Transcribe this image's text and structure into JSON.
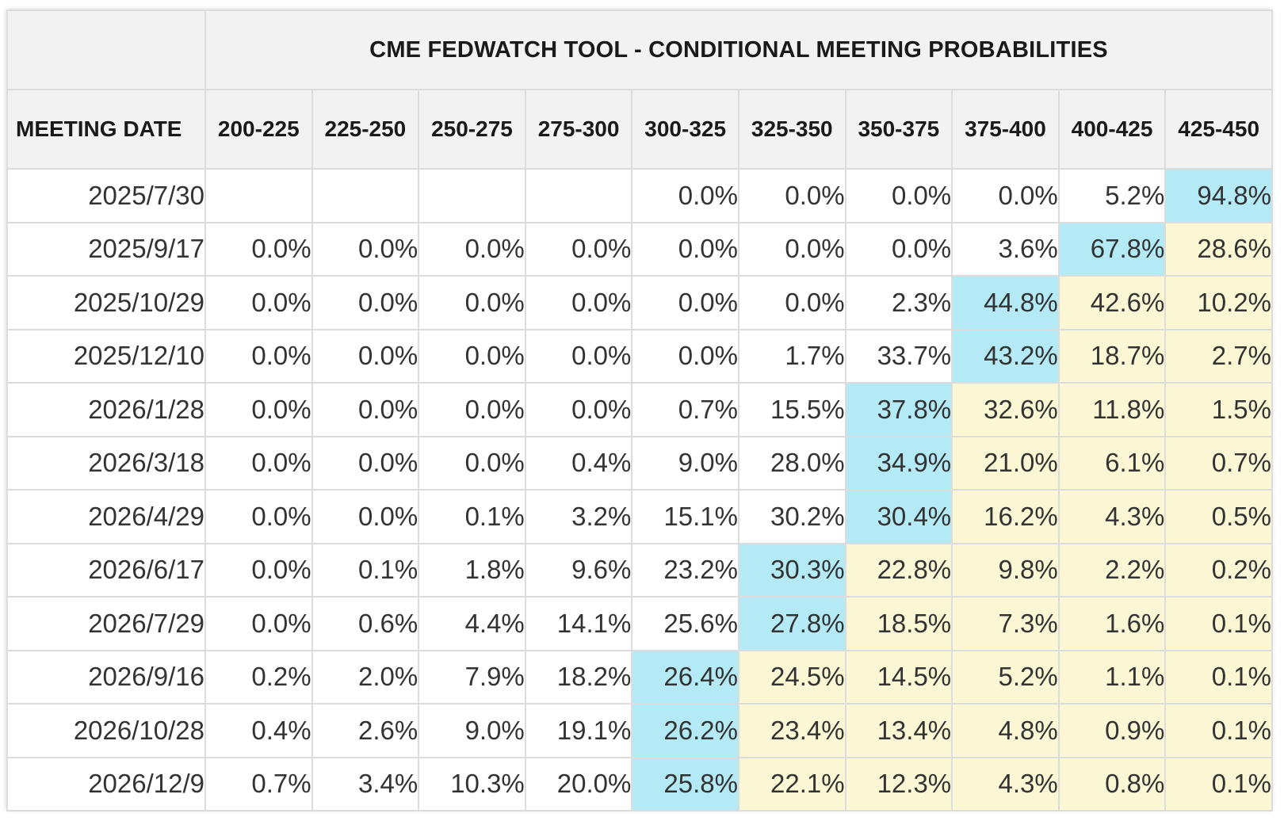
{
  "chart_data": {
    "type": "table",
    "title": "CME FEDWATCH TOOL - CONDITIONAL MEETING PROBABILITIES",
    "row_header_label": "MEETING DATE",
    "columns": [
      "200-225",
      "225-250",
      "250-275",
      "275-300",
      "300-325",
      "325-350",
      "350-375",
      "375-400",
      "400-425",
      "425-450"
    ],
    "rows": [
      {
        "date": "2025/7/30",
        "values": [
          "",
          "",
          "",
          "",
          "0.0%",
          "0.0%",
          "0.0%",
          "0.0%",
          "5.2%",
          "94.8%"
        ],
        "peak": 9
      },
      {
        "date": "2025/9/17",
        "values": [
          "0.0%",
          "0.0%",
          "0.0%",
          "0.0%",
          "0.0%",
          "0.0%",
          "0.0%",
          "3.6%",
          "67.8%",
          "28.6%"
        ],
        "peak": 8
      },
      {
        "date": "2025/10/29",
        "values": [
          "0.0%",
          "0.0%",
          "0.0%",
          "0.0%",
          "0.0%",
          "0.0%",
          "2.3%",
          "44.8%",
          "42.6%",
          "10.2%"
        ],
        "peak": 7
      },
      {
        "date": "2025/12/10",
        "values": [
          "0.0%",
          "0.0%",
          "0.0%",
          "0.0%",
          "0.0%",
          "1.7%",
          "33.7%",
          "43.2%",
          "18.7%",
          "2.7%"
        ],
        "peak": 7
      },
      {
        "date": "2026/1/28",
        "values": [
          "0.0%",
          "0.0%",
          "0.0%",
          "0.0%",
          "0.7%",
          "15.5%",
          "37.8%",
          "32.6%",
          "11.8%",
          "1.5%"
        ],
        "peak": 6
      },
      {
        "date": "2026/3/18",
        "values": [
          "0.0%",
          "0.0%",
          "0.0%",
          "0.4%",
          "9.0%",
          "28.0%",
          "34.9%",
          "21.0%",
          "6.1%",
          "0.7%"
        ],
        "peak": 6
      },
      {
        "date": "2026/4/29",
        "values": [
          "0.0%",
          "0.0%",
          "0.1%",
          "3.2%",
          "15.1%",
          "30.2%",
          "30.4%",
          "16.2%",
          "4.3%",
          "0.5%"
        ],
        "peak": 6
      },
      {
        "date": "2026/6/17",
        "values": [
          "0.0%",
          "0.1%",
          "1.8%",
          "9.6%",
          "23.2%",
          "30.3%",
          "22.8%",
          "9.8%",
          "2.2%",
          "0.2%"
        ],
        "peak": 5
      },
      {
        "date": "2026/7/29",
        "values": [
          "0.0%",
          "0.6%",
          "4.4%",
          "14.1%",
          "25.6%",
          "27.8%",
          "18.5%",
          "7.3%",
          "1.6%",
          "0.1%"
        ],
        "peak": 5
      },
      {
        "date": "2026/9/16",
        "values": [
          "0.2%",
          "2.0%",
          "7.9%",
          "18.2%",
          "26.4%",
          "24.5%",
          "14.5%",
          "5.2%",
          "1.1%",
          "0.1%"
        ],
        "peak": 4
      },
      {
        "date": "2026/10/28",
        "values": [
          "0.4%",
          "2.6%",
          "9.0%",
          "19.1%",
          "26.2%",
          "23.4%",
          "13.4%",
          "4.8%",
          "0.9%",
          "0.1%"
        ],
        "peak": 4
      },
      {
        "date": "2026/12/9",
        "values": [
          "0.7%",
          "3.4%",
          "10.3%",
          "20.0%",
          "25.8%",
          "22.1%",
          "12.3%",
          "4.3%",
          "0.8%",
          "0.1%"
        ],
        "peak": 4
      }
    ]
  },
  "colors": {
    "peak_cell": "#b4eaf5",
    "above_peak_cell": "#fbf7d4",
    "header_bg": "#f2f2f2",
    "border": "#dcdcdc"
  }
}
